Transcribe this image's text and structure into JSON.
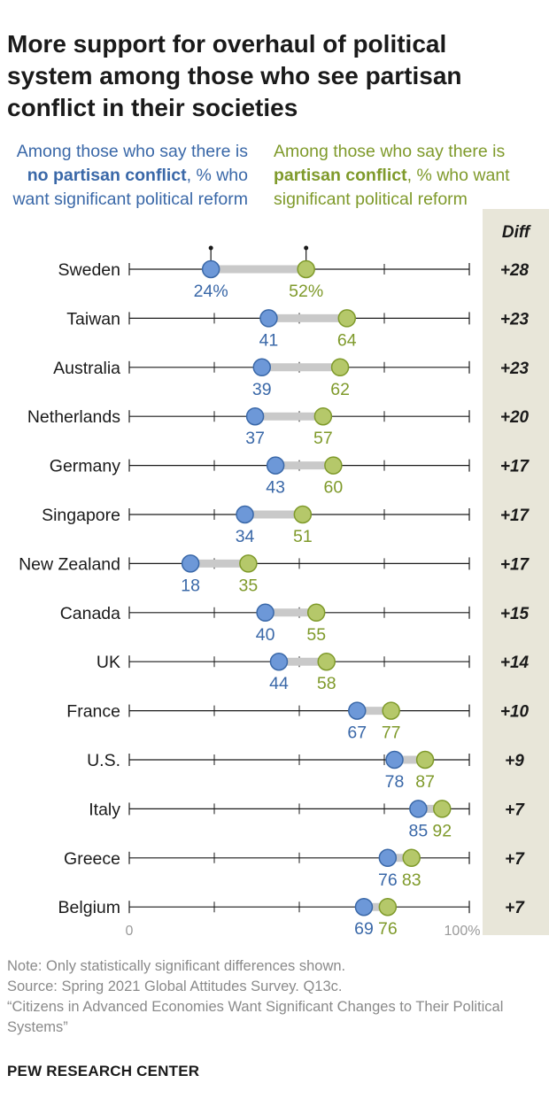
{
  "title": "More support for overhaul of political system among those who see partisan conflict in their societies",
  "legend": {
    "left": {
      "pre": "Among those who say there is ",
      "bold": "no partisan conflict",
      "post": ", % who want significant political reform"
    },
    "right": {
      "pre": "Among those who say there is ",
      "bold": "partisan conflict",
      "post": ", % who want significant political reform"
    }
  },
  "diff_header": "Diff",
  "colors": {
    "no_conflict": "#6d98d8",
    "no_conflict_stroke": "#3a68a8",
    "no_conflict_text": "#3a68a8",
    "conflict": "#b5c86a",
    "conflict_stroke": "#7f9a2b",
    "conflict_text": "#7f9a2b",
    "connector": "#c9c9c9",
    "axis": "#1a1a1a"
  },
  "chart_data": {
    "type": "dot-plot",
    "xlim": [
      0,
      100
    ],
    "x_tick_labels": [
      "0",
      "100%"
    ],
    "series": [
      {
        "name": "No partisan conflict",
        "values": [
          24,
          41,
          39,
          37,
          43,
          34,
          18,
          40,
          44,
          67,
          78,
          85,
          76,
          69
        ]
      },
      {
        "name": "Partisan conflict",
        "values": [
          52,
          64,
          62,
          57,
          60,
          51,
          35,
          55,
          58,
          77,
          87,
          92,
          83,
          76
        ]
      }
    ],
    "categories": [
      "Sweden",
      "Taiwan",
      "Australia",
      "Netherlands",
      "Germany",
      "Singapore",
      "New Zealand",
      "Canada",
      "UK",
      "France",
      "U.S.",
      "Italy",
      "Greece",
      "Belgium"
    ],
    "first_row_value_suffix": "%",
    "diff": [
      "+28",
      "+23",
      "+23",
      "+20",
      "+17",
      "+17",
      "+17",
      "+15",
      "+14",
      "+10",
      "+9",
      "+7",
      "+7",
      "+7"
    ]
  },
  "footer": {
    "note": "Note: Only statistically significant differences shown.",
    "source": "Source: Spring 2021 Global Attitudes Survey. Q13c.",
    "report": "“Citizens in Advanced Economies Want Significant Changes to Their Political Systems”",
    "brand": "PEW RESEARCH CENTER"
  }
}
